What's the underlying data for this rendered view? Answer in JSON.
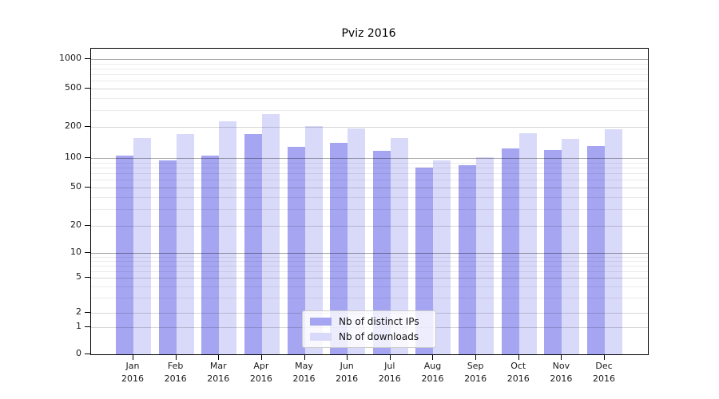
{
  "chart_data": {
    "type": "bar",
    "title": "Pviz 2016",
    "categories": [
      "Jan",
      "Feb",
      "Mar",
      "Apr",
      "May",
      "Jun",
      "Jul",
      "Aug",
      "Sep",
      "Oct",
      "Nov",
      "Dec"
    ],
    "category_year": "2016",
    "series": [
      {
        "name": "Nb of distinct IPs",
        "color": "#a5a5f2",
        "values": [
          105,
          95,
          106,
          170,
          128,
          140,
          118,
          80,
          84,
          124,
          120,
          130
        ]
      },
      {
        "name": "Nb of downloads",
        "color": "#d9d9f9",
        "values": [
          155,
          170,
          230,
          270,
          205,
          192,
          155,
          95,
          102,
          175,
          153,
          190
        ]
      }
    ],
    "yscale": "symlog",
    "y_ticks": [
      0,
      1,
      2,
      5,
      10,
      20,
      50,
      100,
      200,
      500,
      1000
    ],
    "ylim": [
      0,
      1300
    ],
    "xlabel": "",
    "ylabel": "",
    "grid": true,
    "legend_position": "lower center"
  }
}
